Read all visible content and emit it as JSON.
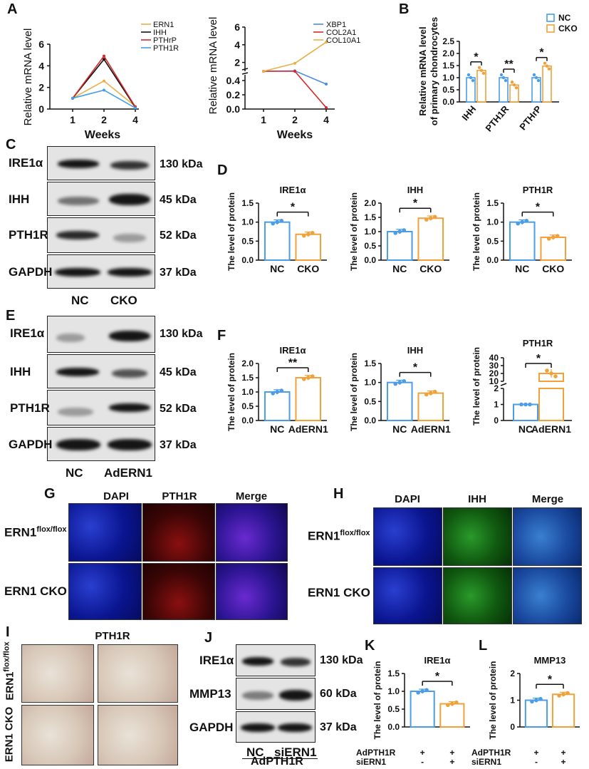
{
  "panel_letters": {
    "A": "A",
    "B": "B",
    "C": "C",
    "D": "D",
    "E": "E",
    "F": "F",
    "G": "G",
    "H": "H",
    "I": "I",
    "J": "J",
    "K": "K",
    "L": "L"
  },
  "colors": {
    "nc": "#4a9de6",
    "cko": "#f0a238",
    "ern1": "#e9b04a",
    "ihh": "#111111",
    "pthrp": "#d42a2a",
    "pth1r": "#45a0e8",
    "xbp1": "#4a8ee0",
    "col2a1": "#d42a2a",
    "col10a1": "#e9b04a"
  },
  "chart_data": [
    {
      "id": "A1",
      "type": "line",
      "ylabel": "Relative mRNA level",
      "xlabel": "Weeks",
      "x": [
        1,
        2,
        4
      ],
      "ylim": [
        0,
        6
      ],
      "yticks": [
        "0",
        "2",
        "4",
        "6"
      ],
      "series": [
        {
          "name": "ERN1",
          "values": [
            1,
            2.6,
            0.25
          ]
        },
        {
          "name": "IHH",
          "values": [
            1,
            4.6,
            0.15
          ]
        },
        {
          "name": "PTHrP",
          "values": [
            1,
            4.9,
            0.2
          ]
        },
        {
          "name": "PTH1R",
          "values": [
            1,
            1.75,
            0.1
          ]
        }
      ]
    },
    {
      "id": "A2",
      "type": "line",
      "ylabel": "Relative mRNA level",
      "xlabel": "Weeks",
      "x": [
        1,
        2,
        4
      ],
      "yticks": [
        "0.0",
        "0.2",
        "0.4",
        "2",
        "4",
        "6"
      ],
      "series": [
        {
          "name": "XBP1",
          "values": [
            1,
            1.05,
            0.35
          ]
        },
        {
          "name": "COL2A1",
          "values": [
            1,
            0.98,
            0.02
          ]
        },
        {
          "name": "COL10A1",
          "values": [
            1,
            1.9,
            4.3
          ]
        }
      ]
    },
    {
      "id": "B",
      "type": "bar",
      "ylabel": "Relative mRNA level of primary chondrocytes",
      "categories": [
        "IHH",
        "PTH1R",
        "PTHrP"
      ],
      "ylim": [
        0,
        2.5
      ],
      "yticks": [
        "0.0",
        "0.5",
        "1.0",
        "1.5",
        "2.0",
        "2.5"
      ],
      "legend": [
        "NC",
        "CKO"
      ],
      "series": [
        {
          "name": "NC",
          "values": [
            1.0,
            1.0,
            1.0
          ]
        },
        {
          "name": "CKO",
          "values": [
            1.3,
            0.7,
            1.48
          ]
        }
      ],
      "sig": [
        "*",
        "**",
        "*"
      ]
    },
    {
      "id": "D1",
      "type": "bar",
      "title": "IRE1α",
      "ylabel": "The level of protein",
      "categories": [
        "NC",
        "CKO"
      ],
      "values": [
        1.0,
        0.68
      ],
      "ylim": [
        0,
        1.5
      ],
      "yticks": [
        "0.0",
        "0.5",
        "1.0",
        "1.5"
      ],
      "sig": "*"
    },
    {
      "id": "D2",
      "type": "bar",
      "title": "IHH",
      "ylabel": "The level of protein",
      "categories": [
        "NC",
        "CKO"
      ],
      "values": [
        1.0,
        1.47
      ],
      "ylim": [
        0,
        2.0
      ],
      "yticks": [
        "0.0",
        "0.5",
        "1.0",
        "1.5",
        "2.0"
      ],
      "sig": "*"
    },
    {
      "id": "D3",
      "type": "bar",
      "title": "PTH1R",
      "ylabel": "The level of protein",
      "categories": [
        "NC",
        "CKO"
      ],
      "values": [
        1.0,
        0.6
      ],
      "ylim": [
        0,
        1.5
      ],
      "yticks": [
        "0.0",
        "0.5",
        "1.0",
        "1.5"
      ],
      "sig": "*"
    },
    {
      "id": "F1",
      "type": "bar",
      "title": "IRE1α",
      "ylabel": "The level of protein",
      "categories": [
        "NC",
        "AdERN1"
      ],
      "values": [
        1.0,
        1.5
      ],
      "ylim": [
        0,
        2.0
      ],
      "yticks": [
        "0.0",
        "0.5",
        "1.0",
        "1.5",
        "2.0"
      ],
      "sig": "**"
    },
    {
      "id": "F2",
      "type": "bar",
      "title": "IHH",
      "ylabel": "The level of protein",
      "categories": [
        "NC",
        "AdERN1"
      ],
      "values": [
        1.0,
        0.72
      ],
      "ylim": [
        0,
        1.5
      ],
      "yticks": [
        "0.0",
        "0.5",
        "1.0",
        "1.5"
      ],
      "sig": "*"
    },
    {
      "id": "F3",
      "type": "bar",
      "title": "PTH1R",
      "ylabel": "The level of protein",
      "categories": [
        "NC",
        "AdERN1"
      ],
      "values": [
        1.0,
        20
      ],
      "yticks": [
        "0",
        "1",
        "2",
        "10",
        "20",
        "30",
        "40"
      ],
      "sig": "*"
    },
    {
      "id": "K",
      "type": "bar",
      "title": "IRE1α",
      "ylabel": "The level of protein",
      "values": [
        1.0,
        0.65
      ],
      "ylim": [
        0,
        1.5
      ],
      "yticks": [
        "0.0",
        "0.5",
        "1.0",
        "1.5"
      ],
      "sig": "*",
      "conditions": [
        {
          "label": "AdPTH1R",
          "values": [
            "+",
            "+"
          ]
        },
        {
          "label": "siERN1",
          "values": [
            "-",
            "+"
          ]
        }
      ]
    },
    {
      "id": "L",
      "type": "bar",
      "title": "MMP13",
      "ylabel": "The level of protein",
      "values": [
        1.0,
        1.22
      ],
      "ylim": [
        0,
        2
      ],
      "yticks": [
        "0",
        "1",
        "2"
      ],
      "sig": "*",
      "conditions": [
        {
          "label": "AdPTH1R",
          "values": [
            "+",
            "+"
          ]
        },
        {
          "label": "siERN1",
          "values": [
            "-",
            "+"
          ]
        }
      ]
    }
  ],
  "blots": {
    "C": {
      "rows": [
        {
          "label": "IRE1α",
          "kda": "130 kDa"
        },
        {
          "label": "IHH",
          "kda": "45 kDa"
        },
        {
          "label": "PTH1R",
          "kda": "52 kDa"
        },
        {
          "label": "GAPDH",
          "kda": "37 kDa"
        }
      ],
      "lanes": [
        "NC",
        "CKO"
      ]
    },
    "E": {
      "rows": [
        {
          "label": "IRE1α",
          "kda": "130 kDa"
        },
        {
          "label": "IHH",
          "kda": "45 kDa"
        },
        {
          "label": "PTH1R",
          "kda": "52 kDa"
        },
        {
          "label": "GAPDH",
          "kda": "37 kDa"
        }
      ],
      "lanes": [
        "NC",
        "AdERN1"
      ]
    },
    "J": {
      "rows": [
        {
          "label": "IRE1α",
          "kda": "130 kDa"
        },
        {
          "label": "MMP13",
          "kda": "60 kDa"
        },
        {
          "label": "GAPDH",
          "kda": "37 kDa"
        }
      ],
      "lanes": [
        "NC",
        "siERN1"
      ],
      "group": "AdPTH1R"
    }
  },
  "micrographs": {
    "G": {
      "columns": [
        "DAPI",
        "PTH1R",
        "Merge"
      ],
      "rows": [
        "ERN1",
        "ERN1 CKO"
      ],
      "row1_sup": "flox/flox"
    },
    "H": {
      "columns": [
        "DAPI",
        "IHH",
        "Merge"
      ],
      "rows": [
        "ERN1",
        "ERN1 CKO"
      ],
      "row1_sup": "flox/flox"
    },
    "I": {
      "title": "PTH1R",
      "rows": [
        "ERN1",
        "ERN1 CKO"
      ],
      "row1_sup": "flox/flox"
    }
  }
}
